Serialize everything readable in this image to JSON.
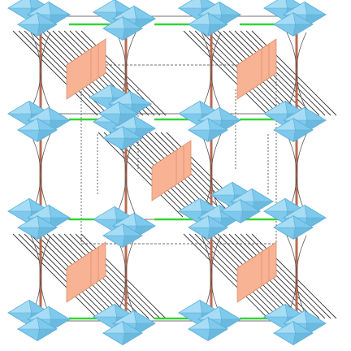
{
  "figure": {
    "kind": "polyhedral crystal structure view",
    "colors": {
      "background": "#ffffff",
      "octahedron_face": "#7ec9ec",
      "octahedron_edge": "#5aaed6",
      "octahedron_light": "#a7dcf5",
      "central_block": "#f7b394",
      "central_block_edge": "#e0906e",
      "vertical_bond": "#b86a50",
      "horizontal_bond": "#36d236",
      "hatch_line": "#333333",
      "cell_edge": "#444444"
    },
    "counts": {
      "octahedra_clusters": 18,
      "central_blocks": 5,
      "vertical_bonds": 12,
      "horizontal_bonds": 12
    }
  }
}
